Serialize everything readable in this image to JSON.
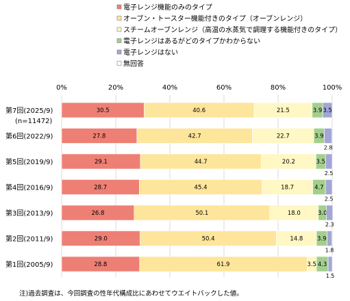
{
  "chart_data": {
    "type": "bar",
    "orientation": "horizontal",
    "stacked": true,
    "xlim": [
      0,
      100
    ],
    "x_ticks": [
      "0%",
      "20%",
      "40%",
      "60%",
      "80%",
      "100%"
    ],
    "grid": true,
    "legend_position": "top",
    "categories": [
      {
        "label": "第7回(2025/9)",
        "sublabel": "(n=11472)"
      },
      {
        "label": "第6回(2022/9)",
        "sublabel": ""
      },
      {
        "label": "第5回(2019/9)",
        "sublabel": ""
      },
      {
        "label": "第4回(2016/9)",
        "sublabel": ""
      },
      {
        "label": "第3回(2013/9)",
        "sublabel": ""
      },
      {
        "label": "第2回(2011/9)",
        "sublabel": ""
      },
      {
        "label": "第1回(2005/9)",
        "sublabel": ""
      }
    ],
    "series": [
      {
        "name": "電子レンジ機能のみのタイプ",
        "color": "#ee7f74",
        "values": [
          30.5,
          27.8,
          29.1,
          28.7,
          26.8,
          29.0,
          28.8
        ],
        "labels": [
          "30.5",
          "27.8",
          "29.1",
          "28.7",
          "26.8",
          "29.0",
          "28.8"
        ]
      },
      {
        "name": "オーブン・トースター機能付きのタイプ（オーブンレンジ）",
        "color": "#fde59b",
        "values": [
          40.6,
          42.7,
          44.7,
          45.4,
          50.1,
          50.4,
          61.9
        ],
        "labels": [
          "40.6",
          "42.7",
          "44.7",
          "45.4",
          "50.1",
          "50.4",
          "61.9"
        ]
      },
      {
        "name": "スチームオーブンレンジ（高温の水蒸気で調理する機能付きのタイプ）",
        "color": "#fff7c4",
        "values": [
          21.5,
          22.7,
          20.2,
          18.7,
          18.0,
          14.8,
          3.5
        ],
        "labels": [
          "21.5",
          "22.7",
          "20.2",
          "18.7",
          "18.0",
          "14.8",
          "3.5"
        ]
      },
      {
        "name": "電子レンジはあるがどのタイプかわからない",
        "color": "#a3cf8c",
        "values": [
          3.9,
          3.9,
          3.5,
          4.7,
          3.0,
          3.9,
          4.3
        ],
        "labels": [
          "3.9",
          "3.9",
          "3.5",
          "4.7",
          "3.0",
          "3.9",
          "4.3"
        ]
      },
      {
        "name": "電子レンジはない",
        "color": "#a3a7d6",
        "values": [
          3.5,
          2.8,
          2.5,
          2.5,
          2.3,
          1.8,
          1.5
        ],
        "labels": [
          "3.5",
          "2.8",
          "2.5",
          "2.5",
          "2.3",
          "1.8",
          "1.5"
        ]
      },
      {
        "name": "無回答",
        "color": "#ffffff",
        "values": [
          0.0,
          0.0,
          0.0,
          0.0,
          0.0,
          0.0,
          0.0
        ],
        "labels": [
          "",
          "",
          "",
          "",
          "",
          "",
          ""
        ]
      }
    ],
    "title": "",
    "xlabel": "",
    "ylabel": "",
    "note": "注)過去調査は、今回調査の性年代構成比にあわせてウエイトバックした値。"
  }
}
